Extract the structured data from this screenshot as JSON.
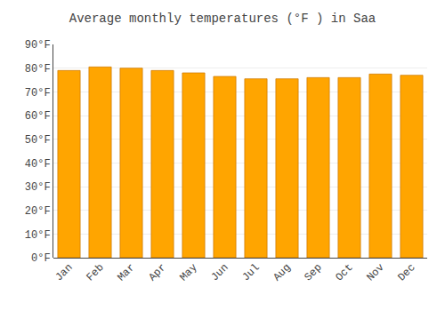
{
  "chart_data": {
    "type": "bar",
    "title": "Average monthly temperatures (°F ) in Saa",
    "categories": [
      "Jan",
      "Feb",
      "Mar",
      "Apr",
      "May",
      "Jun",
      "Jul",
      "Aug",
      "Sep",
      "Oct",
      "Nov",
      "Dec"
    ],
    "values": [
      79.0,
      80.5,
      80.0,
      79.0,
      78.0,
      76.5,
      75.5,
      75.5,
      76.0,
      76.0,
      77.5,
      77.0
    ],
    "color": "#FFA500",
    "ylim": [
      0,
      90
    ],
    "yticks": [
      {
        "value": 0,
        "label": "0°F"
      },
      {
        "value": 10,
        "label": "10°F"
      },
      {
        "value": 20,
        "label": "20°F"
      },
      {
        "value": 30,
        "label": "30°F"
      },
      {
        "value": 40,
        "label": "40°F"
      },
      {
        "value": 50,
        "label": "50°F"
      },
      {
        "value": 60,
        "label": "60°F"
      },
      {
        "value": 70,
        "label": "70°F"
      },
      {
        "value": 80,
        "label": "80°F"
      },
      {
        "value": 90,
        "label": "90°F"
      }
    ],
    "grid": true
  }
}
